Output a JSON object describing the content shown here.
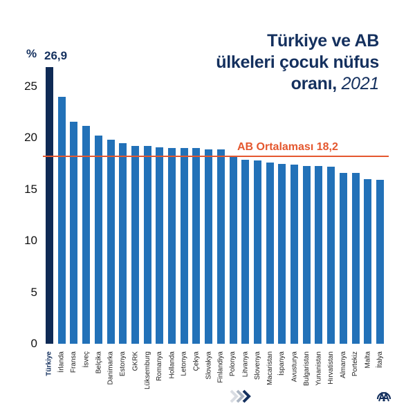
{
  "title": {
    "line1": "Türkiye ve AB",
    "line2": "ülkeleri çocuk nüfus",
    "line3": "oranı,",
    "year": "2021"
  },
  "unit_label": "%",
  "highlight_value_label": "26,9",
  "average": {
    "label": "AB Ortalaması 18,2",
    "value": 18.2,
    "color": "#e4572e"
  },
  "colors": {
    "bar": "#2271b8",
    "highlight_bar": "#0f2a55",
    "title": "#14305e"
  },
  "y_ticks": [
    "0",
    "5",
    "10",
    "15",
    "20",
    "25"
  ],
  "icons": {
    "chevrons": "triple-chevron-right-icon",
    "logo": "aa-logo-icon"
  },
  "chart_data": {
    "type": "bar",
    "title": "Türkiye ve AB ülkeleri çocuk nüfus oranı, 2021",
    "xlabel": "",
    "ylabel": "%",
    "ylim": [
      0,
      27
    ],
    "yticks": [
      0,
      5,
      10,
      15,
      20,
      25
    ],
    "grid": false,
    "legend": "none",
    "categories": [
      "Türkiye",
      "İrlanda",
      "Fransa",
      "İsveç",
      "Belçika",
      "Danimarka",
      "Estonya",
      "GKRK",
      "Lüksemburg",
      "Romanya",
      "Hollanda",
      "Letonya",
      "Çekya",
      "Slovakya",
      "Finlandiya",
      "Polonya",
      "Litvanya",
      "Slovenya",
      "Macaristan",
      "İspanya",
      "Avusturya",
      "Bulgaristan",
      "Yunanistan",
      "Hırvatistan",
      "Almanya",
      "Portekiz",
      "Malta",
      "İtalya"
    ],
    "values": [
      26.9,
      24.0,
      21.6,
      21.2,
      20.2,
      19.8,
      19.5,
      19.2,
      19.2,
      19.1,
      19.0,
      19.0,
      19.0,
      18.9,
      18.9,
      18.3,
      17.9,
      17.8,
      17.6,
      17.5,
      17.4,
      17.3,
      17.3,
      17.2,
      16.6,
      16.6,
      16.0,
      15.9
    ],
    "annotations": [
      {
        "text": "26,9",
        "target": "Türkiye"
      },
      {
        "text": "AB Ortalaması 18,2",
        "type": "hline",
        "y": 18.2
      }
    ]
  }
}
